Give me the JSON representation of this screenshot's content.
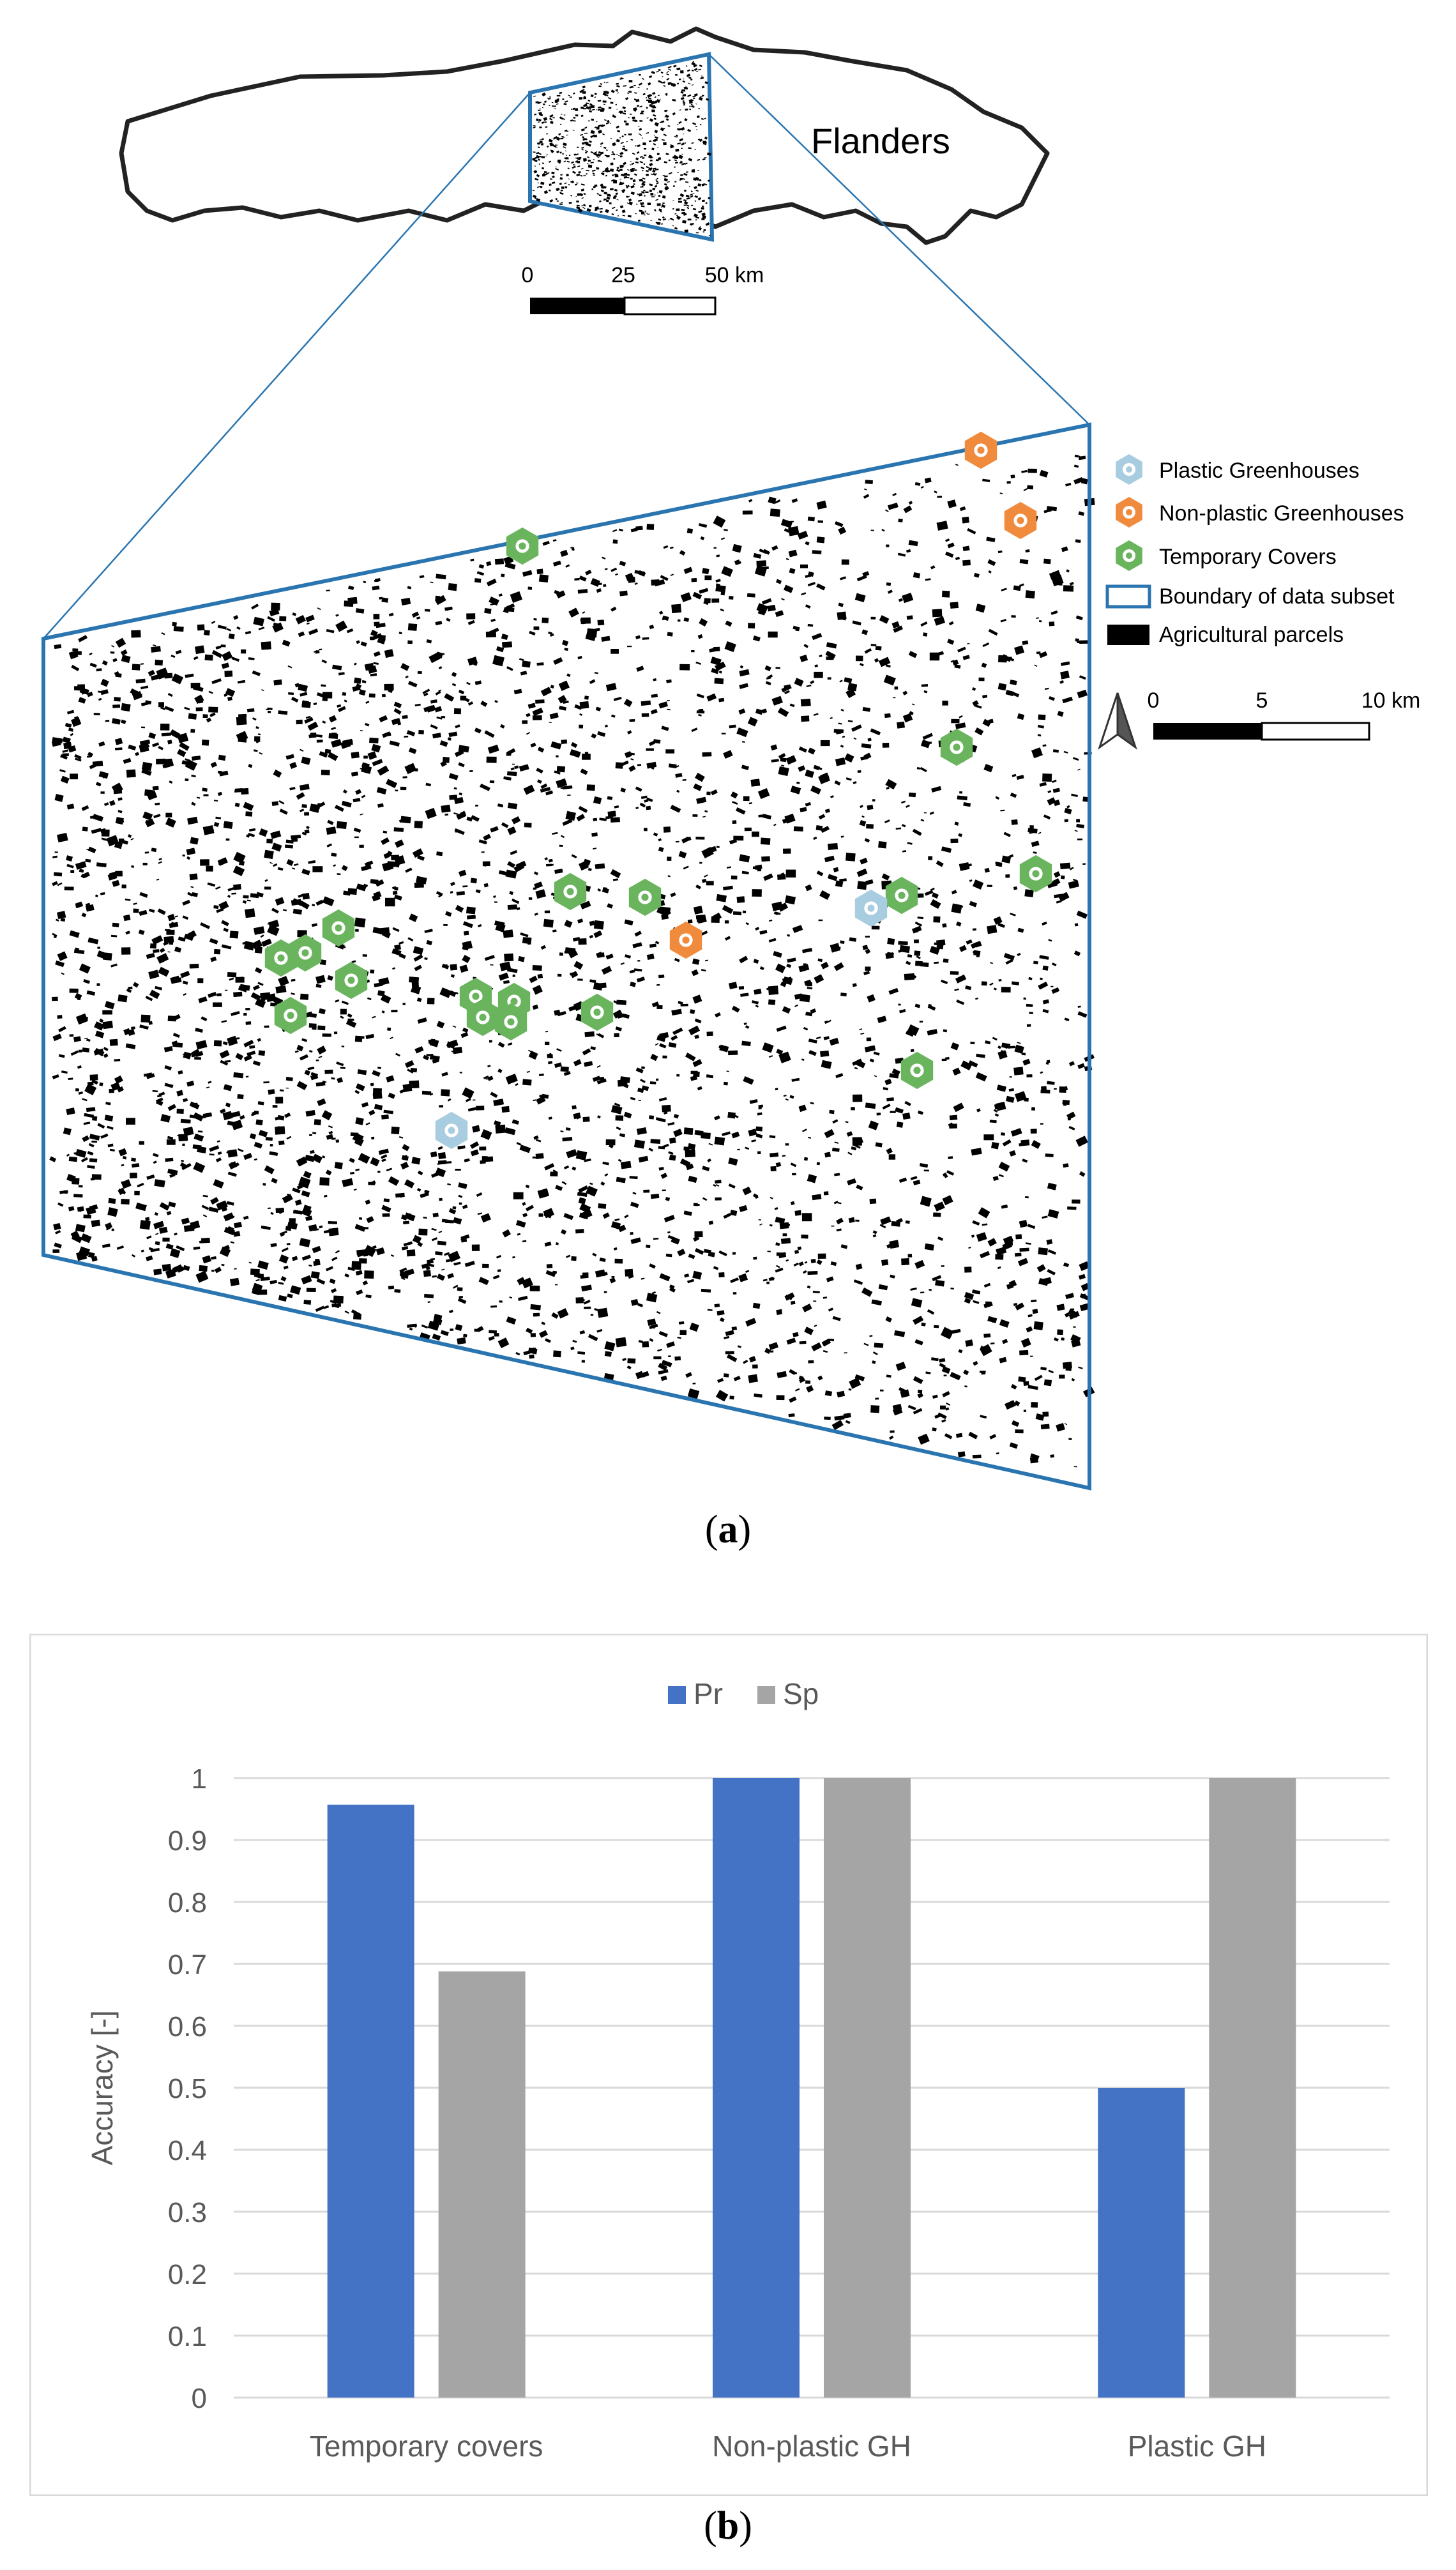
{
  "panel_a": {
    "caption_letter": "a",
    "region_label": "Flanders",
    "overview_scale": {
      "ticks": [
        "0",
        "25",
        "50 km"
      ]
    },
    "map_scale": {
      "ticks": [
        "0",
        "5",
        "10 km"
      ]
    },
    "legend": [
      {
        "key": "plastic",
        "label": "Plastic Greenhouses",
        "symbol": "hexagon",
        "color": "#a9cde0"
      },
      {
        "key": "nonplastic",
        "label": "Non-plastic Greenhouses",
        "symbol": "hexagon",
        "color": "#f08a3c"
      },
      {
        "key": "temporary",
        "label": "Temporary Covers",
        "symbol": "hexagon",
        "color": "#6ab45e"
      },
      {
        "key": "boundary",
        "label": "Boundary of data subset",
        "symbol": "outline",
        "color": "#2a75b0"
      },
      {
        "key": "parcels",
        "label": "Agricultural parcels",
        "symbol": "filled",
        "color": "#000000"
      }
    ],
    "north_arrow_icon": "north-arrow-icon"
  },
  "panel_b": {
    "caption_letter": "b",
    "chart_data": {
      "type": "bar",
      "categories": [
        "Temporary covers",
        "Non-plastic GH",
        "Plastic GH"
      ],
      "series": [
        {
          "name": "Pr",
          "values": [
            0.957,
            1.0,
            0.5
          ],
          "color": "#4472c4"
        },
        {
          "name": "Sp",
          "values": [
            0.688,
            1.0,
            1.0
          ],
          "color": "#a5a5a5"
        }
      ],
      "ylabel": "Accuracy [-]",
      "xlabel": "",
      "ylim": [
        0,
        1
      ],
      "yticks": [
        "0",
        "0.1",
        "0.2",
        "0.3",
        "0.4",
        "0.5",
        "0.6",
        "0.7",
        "0.8",
        "0.9",
        "1"
      ],
      "grid": true,
      "legend_position": "top-center"
    }
  }
}
